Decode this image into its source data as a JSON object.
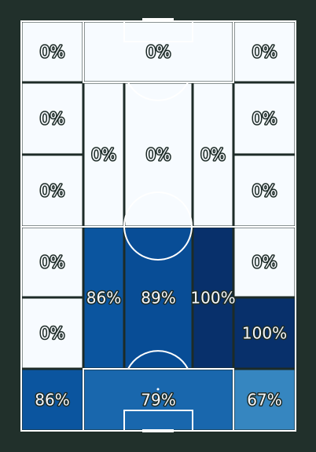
{
  "chart_data": {
    "type": "heatmap",
    "title": "",
    "description": "Pitch zone heatmap with percentage values per zone",
    "colors": {
      "background": "#21302b",
      "pitch_lines": "#ffffff",
      "zone_borders": "#1d2b27",
      "label_text": "#f5f7fb",
      "label_outline": "#1d2b27",
      "scale": [
        "#f7fbff",
        "#deebf7",
        "#c6dbef",
        "#9ecae1",
        "#6baed6",
        "#4292c6",
        "#2171b5",
        "#08519c",
        "#08306b"
      ]
    },
    "zones": [
      {
        "id": "z1",
        "value": 0,
        "label": "0%"
      },
      {
        "id": "z2",
        "value": 0,
        "label": "0%"
      },
      {
        "id": "z3",
        "value": 0,
        "label": "0%"
      },
      {
        "id": "z4",
        "value": 0,
        "label": "0%"
      },
      {
        "id": "z5",
        "value": 0,
        "label": "0%"
      },
      {
        "id": "z6",
        "value": 0,
        "label": "0%"
      },
      {
        "id": "z7",
        "value": 0,
        "label": "0%"
      },
      {
        "id": "z8",
        "value": 0,
        "label": "0%"
      },
      {
        "id": "z9",
        "value": 0,
        "label": "0%"
      },
      {
        "id": "z10",
        "value": 0,
        "label": "0%"
      },
      {
        "id": "z11",
        "value": 0,
        "label": "0%"
      },
      {
        "id": "z12",
        "value": 0,
        "label": "0%"
      },
      {
        "id": "z13",
        "value": 86,
        "label": "86%"
      },
      {
        "id": "z14",
        "value": 89,
        "label": "89%"
      },
      {
        "id": "z15",
        "value": 100,
        "label": "100%"
      },
      {
        "id": "z16",
        "value": 0,
        "label": "0%"
      },
      {
        "id": "z17",
        "value": 100,
        "label": "100%"
      },
      {
        "id": "z18",
        "value": 86,
        "label": "86%"
      },
      {
        "id": "z19",
        "value": 79,
        "label": "79%"
      },
      {
        "id": "z20",
        "value": 67,
        "label": "67%"
      }
    ]
  }
}
